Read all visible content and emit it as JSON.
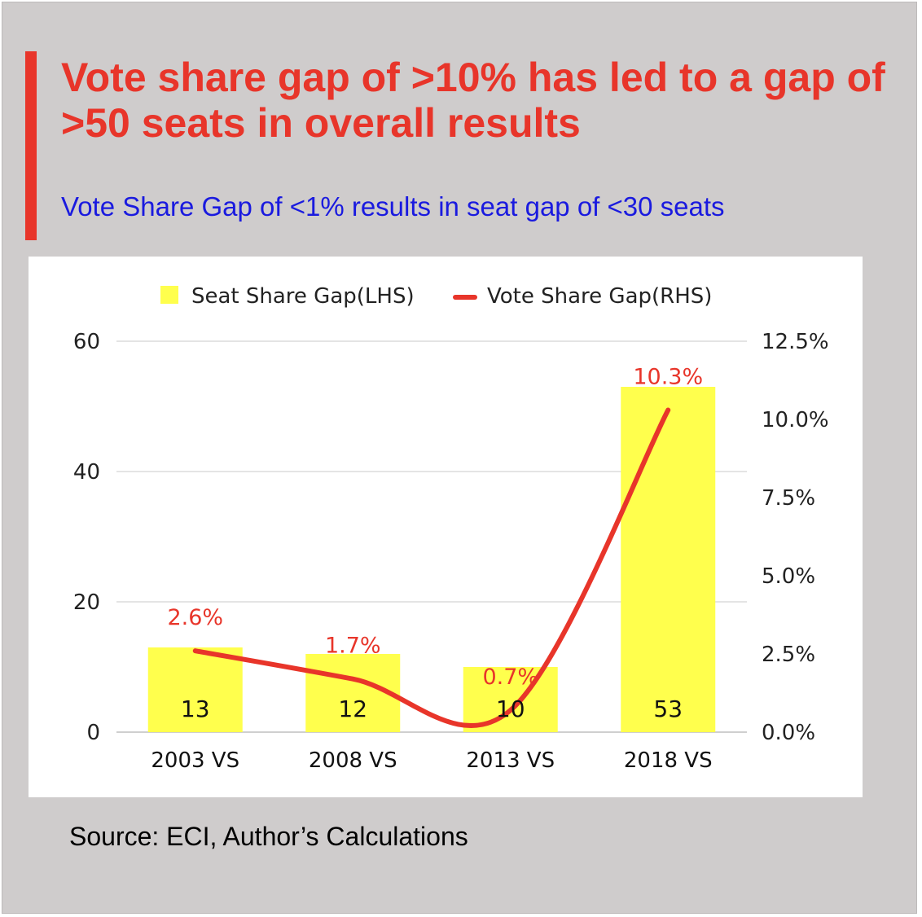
{
  "headline": "Vote share gap of >10% has led to a gap of >50 seats in overall results",
  "subheadline": "Vote Share Gap of <1% results in seat gap of <30 seats",
  "source": "Source: ECI, Author’s Calculations",
  "colors": {
    "accent": "#e8352a",
    "subheadline": "#1a1adf",
    "bar": "#ffff4d",
    "line": "#e8352a",
    "background": "#cfcccc"
  },
  "chart_data": {
    "type": "bar",
    "categories": [
      "2003 VS",
      "2008 VS",
      "2013 VS",
      "2018 VS"
    ],
    "series": [
      {
        "name": "Seat Share Gap(LHS)",
        "type": "bar",
        "axis": "left",
        "values": [
          13,
          12,
          10,
          53
        ],
        "labels": [
          "13",
          "12",
          "10",
          "53"
        ]
      },
      {
        "name": "Vote Share Gap(RHS)",
        "type": "line",
        "axis": "right",
        "values": [
          2.6,
          1.7,
          0.7,
          10.3
        ],
        "labels": [
          "2.6%",
          "1.7%",
          "0.7%",
          "10.3%"
        ]
      }
    ],
    "left_axis": {
      "min": 0,
      "max": 60,
      "ticks": [
        "0",
        "20",
        "40",
        "60"
      ]
    },
    "right_axis": {
      "min": 0,
      "max": 12.5,
      "ticks": [
        "0.0%",
        "2.5%",
        "5.0%",
        "7.5%",
        "10.0%",
        "12.5%"
      ]
    },
    "legend_position": "top",
    "grid": true
  }
}
